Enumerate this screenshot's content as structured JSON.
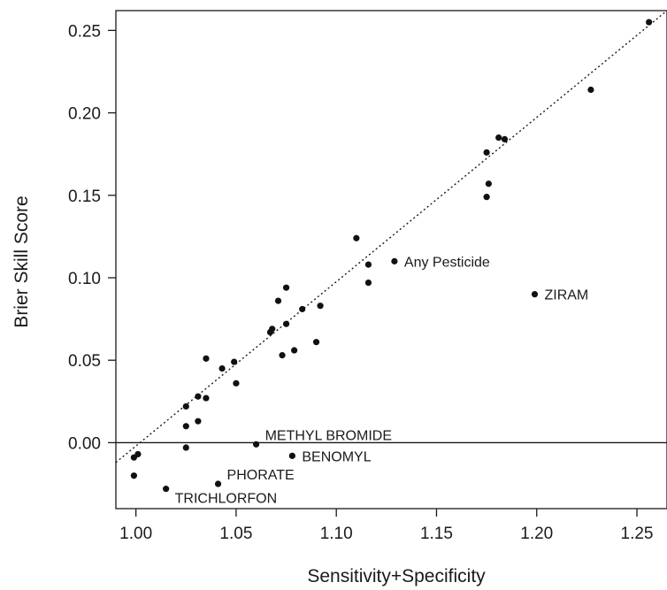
{
  "chart_data": {
    "type": "scatter",
    "title": "",
    "xlabel": "Sensitivity+Specificity",
    "ylabel": "Brier Skill Score",
    "xlim": [
      0.99,
      1.265
    ],
    "ylim": [
      -0.04,
      0.262
    ],
    "x_ticks": [
      1.0,
      1.05,
      1.1,
      1.15,
      1.2,
      1.25
    ],
    "x_tick_labels": [
      "1.00",
      "1.05",
      "1.10",
      "1.15",
      "1.20",
      "1.25"
    ],
    "y_ticks": [
      0.0,
      0.05,
      0.1,
      0.15,
      0.2,
      0.25
    ],
    "y_tick_labels": [
      "0.00",
      "0.05",
      "0.10",
      "0.15",
      "0.20",
      "0.25"
    ],
    "grid": false,
    "reference_lines": [
      {
        "kind": "horizontal",
        "y": 0,
        "style": "solid"
      },
      {
        "kind": "fit",
        "from": [
          0.99,
          -0.012
        ],
        "to": [
          1.265,
          0.262
        ],
        "style": "dotted"
      }
    ],
    "points": [
      {
        "x": 0.999,
        "y": -0.02
      },
      {
        "x": 0.999,
        "y": -0.009
      },
      {
        "x": 1.001,
        "y": -0.007
      },
      {
        "x": 1.015,
        "y": -0.028,
        "label": "TRICHLORFON",
        "label_side": "below-right"
      },
      {
        "x": 1.025,
        "y": -0.003
      },
      {
        "x": 1.025,
        "y": 0.01
      },
      {
        "x": 1.025,
        "y": 0.022
      },
      {
        "x": 1.031,
        "y": 0.013
      },
      {
        "x": 1.031,
        "y": 0.028
      },
      {
        "x": 1.035,
        "y": 0.027
      },
      {
        "x": 1.035,
        "y": 0.051
      },
      {
        "x": 1.041,
        "y": -0.025,
        "label": "PHORATE",
        "label_side": "upper-right"
      },
      {
        "x": 1.043,
        "y": 0.045
      },
      {
        "x": 1.049,
        "y": 0.049
      },
      {
        "x": 1.05,
        "y": 0.036
      },
      {
        "x": 1.06,
        "y": -0.001,
        "label": "METHYL BROMIDE",
        "label_side": "upper-right"
      },
      {
        "x": 1.067,
        "y": 0.067
      },
      {
        "x": 1.068,
        "y": 0.069
      },
      {
        "x": 1.071,
        "y": 0.086
      },
      {
        "x": 1.073,
        "y": 0.053
      },
      {
        "x": 1.075,
        "y": 0.072
      },
      {
        "x": 1.075,
        "y": 0.094
      },
      {
        "x": 1.078,
        "y": -0.008,
        "label": "BENOMYL",
        "label_side": "right"
      },
      {
        "x": 1.079,
        "y": 0.056
      },
      {
        "x": 1.083,
        "y": 0.081
      },
      {
        "x": 1.09,
        "y": 0.061
      },
      {
        "x": 1.092,
        "y": 0.083
      },
      {
        "x": 1.11,
        "y": 0.124
      },
      {
        "x": 1.116,
        "y": 0.097
      },
      {
        "x": 1.116,
        "y": 0.108
      },
      {
        "x": 1.129,
        "y": 0.11,
        "label": "Any Pesticide",
        "label_side": "right"
      },
      {
        "x": 1.175,
        "y": 0.149
      },
      {
        "x": 1.175,
        "y": 0.176
      },
      {
        "x": 1.176,
        "y": 0.157
      },
      {
        "x": 1.181,
        "y": 0.185
      },
      {
        "x": 1.184,
        "y": 0.184
      },
      {
        "x": 1.199,
        "y": 0.09,
        "label": "ZIRAM",
        "label_side": "right"
      },
      {
        "x": 1.227,
        "y": 0.214
      },
      {
        "x": 1.256,
        "y": 0.255
      }
    ]
  },
  "colors": {
    "background": "#ffffff",
    "axis": "#1a1a1a",
    "point": "#111111",
    "reference_line": "#1a1a1a"
  }
}
